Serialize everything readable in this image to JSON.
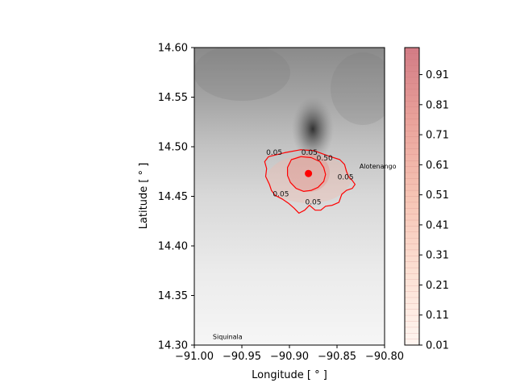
{
  "chart_data": {
    "type": "heatmap",
    "title": "",
    "xlabel": "Longitude [$^\\circ$]",
    "ylabel": "Latitude [$^\\circ$]",
    "xlabel_display": "Longitude [ ° ]",
    "ylabel_display": "Latitude [ ° ]",
    "xlim": [
      -91.0,
      -90.8
    ],
    "ylim": [
      14.3,
      14.6
    ],
    "xticks": [
      -91.0,
      -90.95,
      -90.9,
      -90.85,
      -90.8
    ],
    "xtick_labels": [
      "−91.00",
      "−90.95",
      "−90.90",
      "−90.85",
      "−90.80"
    ],
    "yticks": [
      14.3,
      14.35,
      14.4,
      14.45,
      14.5,
      14.55,
      14.6
    ],
    "ytick_labels": [
      "14.30",
      "14.35",
      "14.40",
      "14.45",
      "14.50",
      "14.55",
      "14.60"
    ],
    "background": "grayscale elevation shading, darker toward the north",
    "colorbar": {
      "ticks": [
        0.01,
        0.11,
        0.21,
        0.31,
        0.41,
        0.51,
        0.61,
        0.71,
        0.81,
        0.91
      ],
      "tick_labels": [
        "0.01",
        "0.11",
        "0.21",
        "0.31",
        "0.41",
        "0.51",
        "0.61",
        "0.71",
        "0.81",
        "0.91"
      ],
      "range": [
        0.01,
        1.0
      ],
      "color_low": "#fff5f0",
      "color_high": "#d27b85"
    },
    "contours": [
      {
        "level": 0.05,
        "label": "0.05",
        "color": "#ff0000",
        "points": [
          [
            -90.922,
            14.49
          ],
          [
            -90.905,
            14.494
          ],
          [
            -90.888,
            14.497
          ],
          [
            -90.874,
            14.496
          ],
          [
            -90.86,
            14.491
          ],
          [
            -90.847,
            14.487
          ],
          [
            -90.842,
            14.482
          ],
          [
            -90.84,
            14.475
          ],
          [
            -90.838,
            14.47
          ],
          [
            -90.834,
            14.466
          ],
          [
            -90.831,
            14.462
          ],
          [
            -90.834,
            14.458
          ],
          [
            -90.84,
            14.456
          ],
          [
            -90.845,
            14.452
          ],
          [
            -90.848,
            14.444
          ],
          [
            -90.855,
            14.441
          ],
          [
            -90.862,
            14.44
          ],
          [
            -90.867,
            14.436
          ],
          [
            -90.873,
            14.436
          ],
          [
            -90.879,
            14.441
          ],
          [
            -90.884,
            14.436
          ],
          [
            -90.89,
            14.433
          ],
          [
            -90.895,
            14.438
          ],
          [
            -90.901,
            14.443
          ],
          [
            -90.907,
            14.447
          ],
          [
            -90.915,
            14.451
          ],
          [
            -90.919,
            14.456
          ],
          [
            -90.921,
            14.462
          ],
          [
            -90.925,
            14.47
          ],
          [
            -90.924,
            14.478
          ],
          [
            -90.926,
            14.485
          ]
        ]
      },
      {
        "level": 0.5,
        "label": "0.50",
        "color": "#ff0000",
        "points": [
          [
            -90.898,
            14.487
          ],
          [
            -90.888,
            14.49
          ],
          [
            -90.877,
            14.489
          ],
          [
            -90.868,
            14.485
          ],
          [
            -90.864,
            14.479
          ],
          [
            -90.862,
            14.472
          ],
          [
            -90.864,
            14.465
          ],
          [
            -90.87,
            14.459
          ],
          [
            -90.877,
            14.456
          ],
          [
            -90.885,
            14.455
          ],
          [
            -90.893,
            14.458
          ],
          [
            -90.899,
            14.464
          ],
          [
            -90.902,
            14.471
          ],
          [
            -90.902,
            14.479
          ]
        ]
      }
    ],
    "contour_labels": [
      {
        "text": "0.05",
        "x": -90.916,
        "y": 14.492
      },
      {
        "text": "0.05",
        "x": -90.879,
        "y": 14.492
      },
      {
        "text": "0.50",
        "x": -90.863,
        "y": 14.486
      },
      {
        "text": "0.05",
        "x": -90.841,
        "y": 14.467
      },
      {
        "text": "0.05",
        "x": -90.909,
        "y": 14.45
      },
      {
        "text": "0.05",
        "x": -90.875,
        "y": 14.442
      }
    ],
    "vent": {
      "x": -90.88,
      "y": 14.473,
      "color": "#ff0000"
    },
    "places": [
      {
        "name": "Alotenango",
        "x": -90.807,
        "y": 14.478
      },
      {
        "name": "Siquinala",
        "x": -90.965,
        "y": 14.306
      }
    ]
  }
}
